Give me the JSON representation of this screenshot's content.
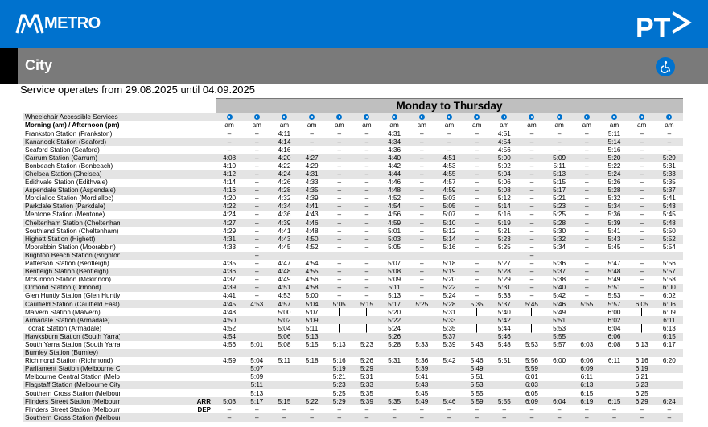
{
  "header": {
    "brand": "METRO",
    "line_title": "City"
  },
  "validity": "Service operates from 29.08.2025  until 04.09.2025",
  "timetable": {
    "day_title": "Monday to Thursday",
    "wheelchair_label": "Wheelchair Accessible Services",
    "ampm_label": "Morning (am) / Afternoon (pm)",
    "arr_label": "ARR",
    "dep_label": "DEP",
    "ampm": [
      "am",
      "am",
      "am",
      "am",
      "am",
      "am",
      "am",
      "am",
      "am",
      "am",
      "am",
      "am",
      "am",
      "am",
      "am",
      "am",
      "am"
    ],
    "rows": [
      {
        "station": "Frankston Station (Frankston)",
        "t": [
          "–",
          "–",
          "4:11",
          "–",
          "–",
          "–",
          "4:31",
          "–",
          "–",
          "–",
          "4:51",
          "–",
          "–",
          "–",
          "5:11",
          "–",
          "–"
        ]
      },
      {
        "station": "Kananook Station (Seaford)",
        "t": [
          "–",
          "–",
          "4:14",
          "–",
          "–",
          "–",
          "4:34",
          "–",
          "–",
          "–",
          "4:54",
          "–",
          "–",
          "–",
          "5:14",
          "–",
          "–"
        ]
      },
      {
        "station": "Seaford Station (Seaford)",
        "t": [
          "–",
          "–",
          "4:16",
          "–",
          "–",
          "–",
          "4:36",
          "–",
          "–",
          "–",
          "4:56",
          "–",
          "–",
          "–",
          "5:16",
          "–",
          "–"
        ]
      },
      {
        "station": "Carrum Station (Carrum)",
        "t": [
          "4:08",
          "–",
          "4:20",
          "4:27",
          "–",
          "–",
          "4:40",
          "–",
          "4:51",
          "–",
          "5:00",
          "–",
          "5:09",
          "–",
          "5:20",
          "–",
          "5:29"
        ]
      },
      {
        "station": "Bonbeach Station (Bonbeach)",
        "t": [
          "4:10",
          "–",
          "4:22",
          "4:29",
          "–",
          "–",
          "4:42",
          "–",
          "4:53",
          "–",
          "5:02",
          "–",
          "5:11",
          "–",
          "5:22",
          "–",
          "5:31"
        ]
      },
      {
        "station": "Chelsea Station (Chelsea)",
        "t": [
          "4:12",
          "–",
          "4:24",
          "4:31",
          "–",
          "–",
          "4:44",
          "–",
          "4:55",
          "–",
          "5:04",
          "–",
          "5:13",
          "–",
          "5:24",
          "–",
          "5:33"
        ]
      },
      {
        "station": "Edithvale Station (Edithvale)",
        "t": [
          "4:14",
          "–",
          "4:26",
          "4:33",
          "–",
          "–",
          "4:46",
          "–",
          "4:57",
          "–",
          "5:06",
          "–",
          "5:15",
          "–",
          "5:26",
          "–",
          "5:35"
        ]
      },
      {
        "station": "Aspendale Station (Aspendale)",
        "t": [
          "4:16",
          "–",
          "4:28",
          "4:35",
          "–",
          "–",
          "4:48",
          "–",
          "4:59",
          "–",
          "5:08",
          "–",
          "5:17",
          "–",
          "5:28",
          "–",
          "5:37"
        ]
      },
      {
        "station": "Mordialloc Station (Mordialloc)",
        "t": [
          "4:20",
          "–",
          "4:32",
          "4:39",
          "–",
          "–",
          "4:52",
          "–",
          "5:03",
          "–",
          "5:12",
          "–",
          "5:21",
          "–",
          "5:32",
          "–",
          "5:41"
        ]
      },
      {
        "station": "Parkdale Station (Parkdale)",
        "t": [
          "4:22",
          "–",
          "4:34",
          "4:41",
          "–",
          "–",
          "4:54",
          "–",
          "5:05",
          "–",
          "5:14",
          "–",
          "5:23",
          "–",
          "5:34",
          "–",
          "5:43"
        ]
      },
      {
        "station": "Mentone Station (Mentone)",
        "t": [
          "4:24",
          "–",
          "4:36",
          "4:43",
          "–",
          "–",
          "4:56",
          "–",
          "5:07",
          "–",
          "5:16",
          "–",
          "5:25",
          "–",
          "5:36",
          "–",
          "5:45"
        ]
      },
      {
        "station": "Cheltenham Station (Cheltenham)",
        "t": [
          "4:27",
          "–",
          "4:39",
          "4:46",
          "–",
          "–",
          "4:59",
          "–",
          "5:10",
          "–",
          "5:19",
          "–",
          "5:28",
          "–",
          "5:39",
          "–",
          "5:48"
        ]
      },
      {
        "station": "Southland Station (Cheltenham)",
        "t": [
          "4:29",
          "–",
          "4:41",
          "4:48",
          "–",
          "–",
          "5:01",
          "–",
          "5:12",
          "–",
          "5:21",
          "–",
          "5:30",
          "–",
          "5:41",
          "–",
          "5:50"
        ]
      },
      {
        "station": "Highett Station (Highett)",
        "t": [
          "4:31",
          "–",
          "4:43",
          "4:50",
          "–",
          "–",
          "5:03",
          "–",
          "5:14",
          "–",
          "5:23",
          "–",
          "5:32",
          "–",
          "5:43",
          "–",
          "5:52"
        ]
      },
      {
        "station": "Moorabbin Station (Moorabbin)",
        "t": [
          "4:33",
          "–",
          "4:45",
          "4:52",
          "–",
          "–",
          "5:05",
          "–",
          "5:16",
          "–",
          "5:25",
          "–",
          "5:34",
          "–",
          "5:45",
          "–",
          "5:54"
        ]
      },
      {
        "station": "Brighton Beach Station (Brighton)",
        "t": [
          "",
          "–",
          "",
          "",
          "",
          "",
          "",
          "",
          "",
          "",
          "",
          "–",
          "",
          "",
          "",
          "",
          ""
        ]
      },
      {
        "station": "Patterson Station (Bentleigh)",
        "t": [
          "4:35",
          "–",
          "4:47",
          "4:54",
          "–",
          "–",
          "5:07",
          "–",
          "5:18",
          "–",
          "5:27",
          "–",
          "5:36",
          "–",
          "5:47",
          "–",
          "5:56"
        ]
      },
      {
        "station": "Bentleigh Station (Bentleigh)",
        "t": [
          "4:36",
          "–",
          "4:48",
          "4:55",
          "–",
          "–",
          "5:08",
          "–",
          "5:19",
          "–",
          "5:28",
          "–",
          "5:37",
          "–",
          "5:48",
          "–",
          "5:57"
        ]
      },
      {
        "station": "McKinnon Station (Mckinnon)",
        "t": [
          "4:37",
          "–",
          "4:49",
          "4:56",
          "–",
          "–",
          "5:09",
          "–",
          "5:20",
          "–",
          "5:29",
          "–",
          "5:38",
          "–",
          "5:49",
          "–",
          "5:58"
        ]
      },
      {
        "station": "Ormond Station (Ormond)",
        "t": [
          "4:39",
          "–",
          "4:51",
          "4:58",
          "–",
          "–",
          "5:11",
          "–",
          "5:22",
          "–",
          "5:31",
          "–",
          "5:40",
          "–",
          "5:51",
          "–",
          "6:00"
        ]
      },
      {
        "station": "Glen Huntly Station (Glen Huntly)",
        "t": [
          "4:41",
          "–",
          "4:53",
          "5:00",
          "–",
          "–",
          "5:13",
          "–",
          "5:24",
          "–",
          "5:33",
          "–",
          "5:42",
          "–",
          "5:53",
          "–",
          "6:02"
        ]
      },
      {
        "station": "Caulfield Station (Caulfield East)",
        "t": [
          "4:45",
          "4:53",
          "4:57",
          "5:04",
          "5:05",
          "5:15",
          "5:17",
          "5:25",
          "5:28",
          "5:35",
          "5:37",
          "5:45",
          "5:46",
          "5:55",
          "5:57",
          "6:05",
          "6:06"
        ]
      },
      {
        "station": "Malvern Station (Malvern)",
        "t": [
          "4:48",
          "|",
          "5:00",
          "5:07",
          "|",
          "|",
          "5:20",
          "|",
          "5:31",
          "|",
          "5:40",
          "|",
          "5:49",
          "|",
          "6:00",
          "|",
          "6:09"
        ]
      },
      {
        "station": "Armadale Station (Armadale)",
        "t": [
          "4:50",
          "|",
          "5:02",
          "5:09",
          "|",
          "|",
          "5:22",
          "|",
          "5:33",
          "|",
          "5:42",
          "|",
          "5:51",
          "|",
          "6:02",
          "|",
          "6:11"
        ]
      },
      {
        "station": "Toorak Station (Armadale)",
        "t": [
          "4:52",
          "|",
          "5:04",
          "5:11",
          "|",
          "|",
          "5:24",
          "|",
          "5:35",
          "|",
          "5:44",
          "|",
          "5:53",
          "|",
          "6:04",
          "|",
          "6:13"
        ]
      },
      {
        "station": "Hawksburn Station (South Yarra)",
        "t": [
          "4:54",
          "|",
          "5:06",
          "5:13",
          "|",
          "|",
          "5:26",
          "|",
          "5:37",
          "|",
          "5:46",
          "|",
          "5:55",
          "|",
          "6:06",
          "|",
          "6:15"
        ]
      },
      {
        "station": "South Yarra Station (South Yarra)",
        "t": [
          "4:56",
          "5:01",
          "5:08",
          "5:15",
          "5:13",
          "5:23",
          "5:28",
          "5:33",
          "5:39",
          "5:43",
          "5:48",
          "5:53",
          "5:57",
          "6:03",
          "6:08",
          "6:13",
          "6:17"
        ]
      },
      {
        "station": "Burnley Station (Burnley)",
        "t": [
          "",
          "",
          "",
          "",
          "",
          "",
          "",
          "",
          "",
          "",
          "",
          "",
          "",
          "",
          "",
          "",
          ""
        ]
      },
      {
        "station": "Richmond Station (Richmond)",
        "t": [
          "4:59",
          "5:04",
          "5:11",
          "5:18",
          "5:16",
          "5:26",
          "5:31",
          "5:36",
          "5:42",
          "5:46",
          "5:51",
          "5:56",
          "6:00",
          "6:06",
          "6:11",
          "6:16",
          "6:20"
        ]
      },
      {
        "station": "Parliament Station (Melbourne City)",
        "t": [
          "",
          "5:07",
          "",
          "",
          "5:19",
          "5:29",
          "",
          "5:39",
          "",
          "5:49",
          "",
          "5:59",
          "",
          "6:09",
          "",
          "6:19",
          ""
        ]
      },
      {
        "station": "Melbourne Central Station (Melbourne City)",
        "t": [
          "",
          "5:09",
          "",
          "",
          "5:21",
          "5:31",
          "",
          "5:41",
          "",
          "5:51",
          "",
          "6:01",
          "",
          "6:11",
          "",
          "6:21",
          ""
        ]
      },
      {
        "station": "Flagstaff Station (Melbourne City)",
        "t": [
          "",
          "5:11",
          "",
          "",
          "5:23",
          "5:33",
          "",
          "5:43",
          "",
          "5:53",
          "",
          "6:03",
          "",
          "6:13",
          "",
          "6:23",
          ""
        ]
      },
      {
        "station": "Southern Cross Station (Melbourne City)",
        "t": [
          "",
          "5:13",
          "",
          "",
          "5:25",
          "5:35",
          "",
          "5:45",
          "",
          "5:55",
          "",
          "6:05",
          "",
          "6:15",
          "",
          "6:25",
          ""
        ]
      },
      {
        "station": "Flinders Street Station (Melbourne City)",
        "t": [
          "5:03",
          "5:17",
          "5:15",
          "5:22",
          "5:29",
          "5:39",
          "5:35",
          "5:49",
          "5:46",
          "5:59",
          "5:55",
          "6:09",
          "6:04",
          "6:19",
          "6:15",
          "6:29",
          "6:24"
        ]
      },
      {
        "station": "Flinders Street Station (Melbourne City)",
        "t": [
          "–",
          "–",
          "–",
          "–",
          "–",
          "–",
          "–",
          "–",
          "–",
          "–",
          "–",
          "–",
          "–",
          "–",
          "–",
          "–",
          "–"
        ]
      },
      {
        "station": "Southern Cross Station (Melbourne City)",
        "t": [
          "–",
          "–",
          "–",
          "–",
          "–",
          "–",
          "–",
          "–",
          "–",
          "–",
          "–",
          "–",
          "–",
          "–",
          "–",
          "–",
          "–"
        ]
      }
    ]
  }
}
